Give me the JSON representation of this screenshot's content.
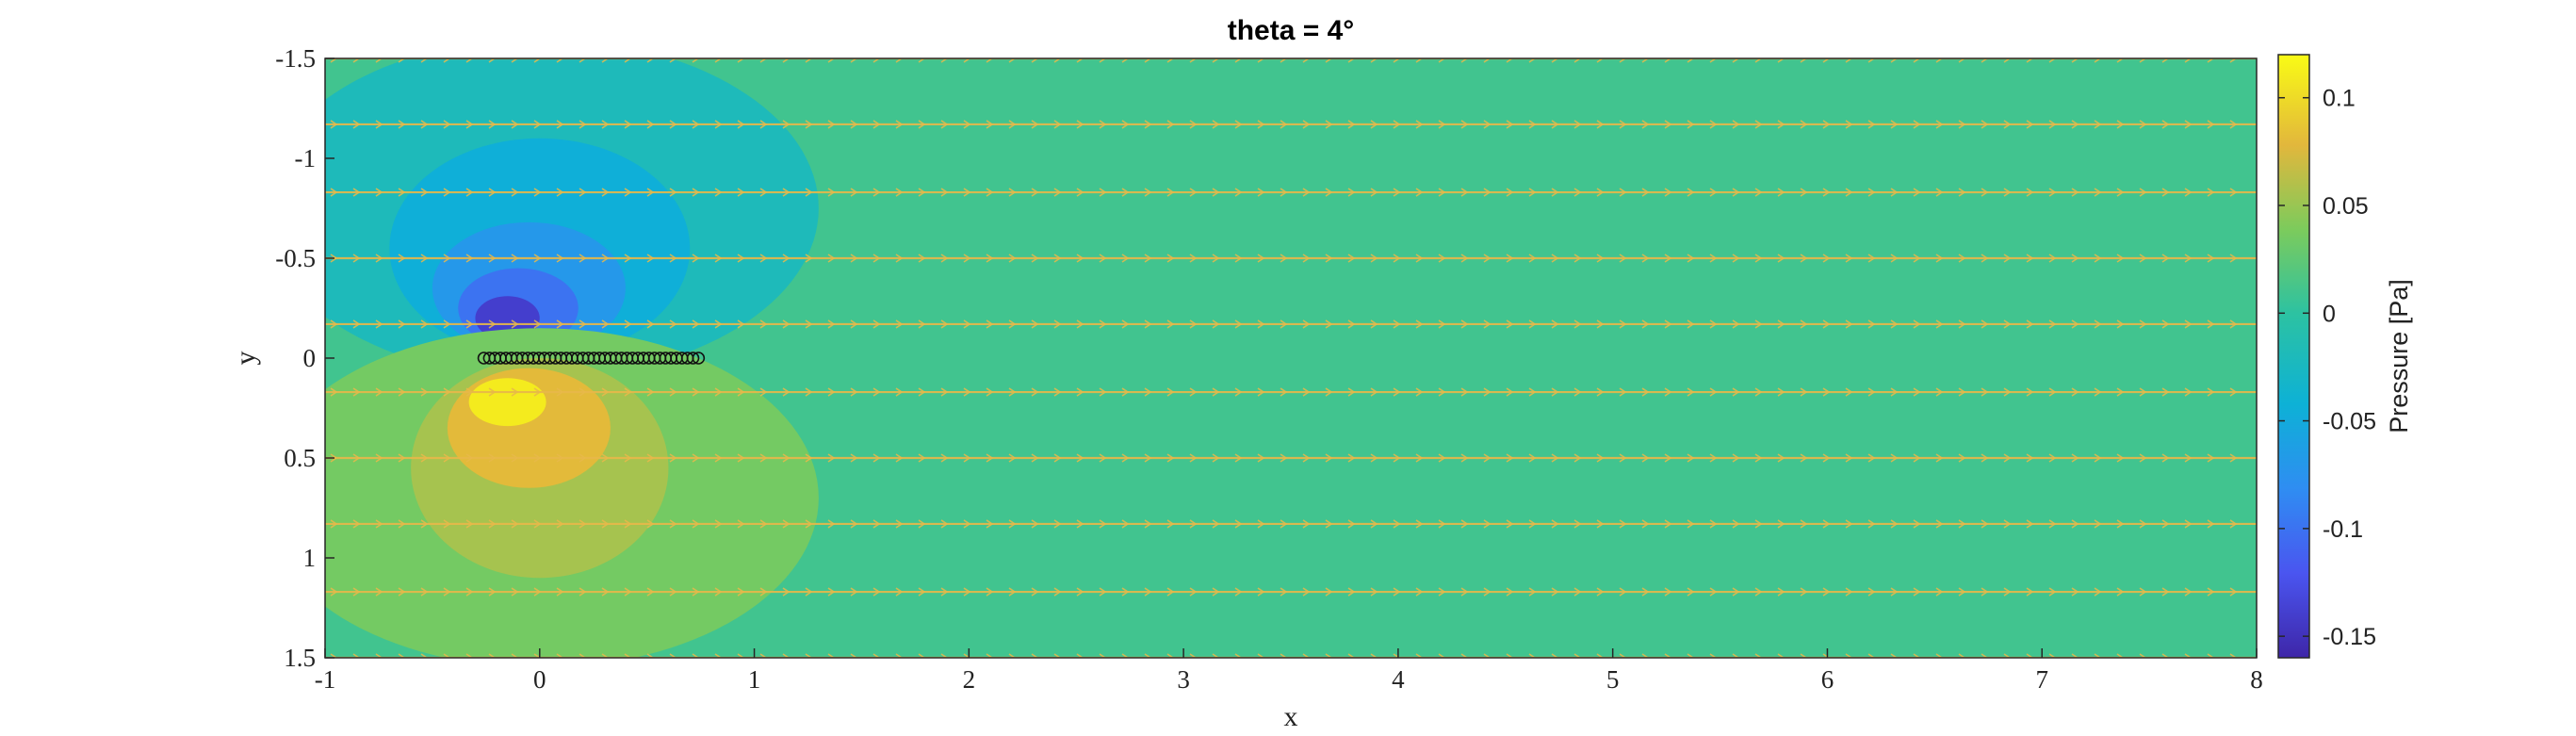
{
  "chart_data": {
    "type": "heatmap",
    "title": "theta = 4°",
    "xlabel": "x",
    "ylabel": "y",
    "xlim": [
      -1,
      8
    ],
    "ylim": [
      -1.5,
      1.5
    ],
    "y_reversed": true,
    "xticks": [
      -1,
      0,
      1,
      2,
      3,
      4,
      5,
      6,
      7,
      8
    ],
    "xtick_labels": [
      "-1",
      "0",
      "1",
      "2",
      "3",
      "4",
      "5",
      "6",
      "7",
      "8"
    ],
    "yticks": [
      -1.5,
      -1,
      -0.5,
      0,
      0.5,
      1,
      1.5
    ],
    "ytick_labels": [
      "-1.5",
      "-1",
      "-0.5",
      "0",
      "0.5",
      "1",
      "1.5"
    ],
    "colorbar": {
      "label": "Pressure [Pa]",
      "range": [
        -0.16,
        0.12
      ],
      "ticks": [
        0.1,
        0.05,
        0,
        -0.05,
        -0.1,
        -0.15
      ],
      "tick_labels": [
        "0.1",
        "0.05",
        "0",
        "-0.05",
        "-0.1",
        "-0.15"
      ],
      "colormap": "parula"
    },
    "background_pressure": 0.01,
    "pressure_regions": [
      {
        "name": "suction-outer",
        "cx": 0.0,
        "cy": -0.75,
        "rx": 1.3,
        "ry": 0.85,
        "value": -0.02
      },
      {
        "name": "suction-mid",
        "cx": 0.0,
        "cy": -0.55,
        "rx": 0.7,
        "ry": 0.55,
        "value": -0.045
      },
      {
        "name": "suction-inner",
        "cx": -0.05,
        "cy": -0.35,
        "rx": 0.45,
        "ry": 0.33,
        "value": -0.07
      },
      {
        "name": "suction-core",
        "cx": -0.1,
        "cy": -0.25,
        "rx": 0.28,
        "ry": 0.2,
        "value": -0.1
      },
      {
        "name": "suction-peak",
        "cx": -0.15,
        "cy": -0.2,
        "rx": 0.15,
        "ry": 0.11,
        "value": -0.14
      },
      {
        "name": "pressure-outer",
        "cx": 0.0,
        "cy": 0.7,
        "rx": 1.3,
        "ry": 0.85,
        "value": 0.035
      },
      {
        "name": "pressure-mid",
        "cx": 0.0,
        "cy": 0.55,
        "rx": 0.6,
        "ry": 0.55,
        "value": 0.055
      },
      {
        "name": "pressure-inner",
        "cx": -0.05,
        "cy": 0.35,
        "rx": 0.38,
        "ry": 0.3,
        "value": 0.08
      },
      {
        "name": "pressure-peak",
        "cx": -0.15,
        "cy": 0.22,
        "rx": 0.18,
        "ry": 0.12,
        "value": 0.11
      }
    ],
    "streamline_y": [
      -1.5,
      -1.17,
      -0.83,
      -0.5,
      -0.17,
      0.17,
      0.5,
      0.83,
      1.17,
      1.5
    ],
    "streamline_color": "#e8b84a",
    "plate": {
      "x_start": -0.26,
      "x_end": 0.74,
      "y": 0.0,
      "marker_count": 40,
      "color": "#111111"
    }
  }
}
